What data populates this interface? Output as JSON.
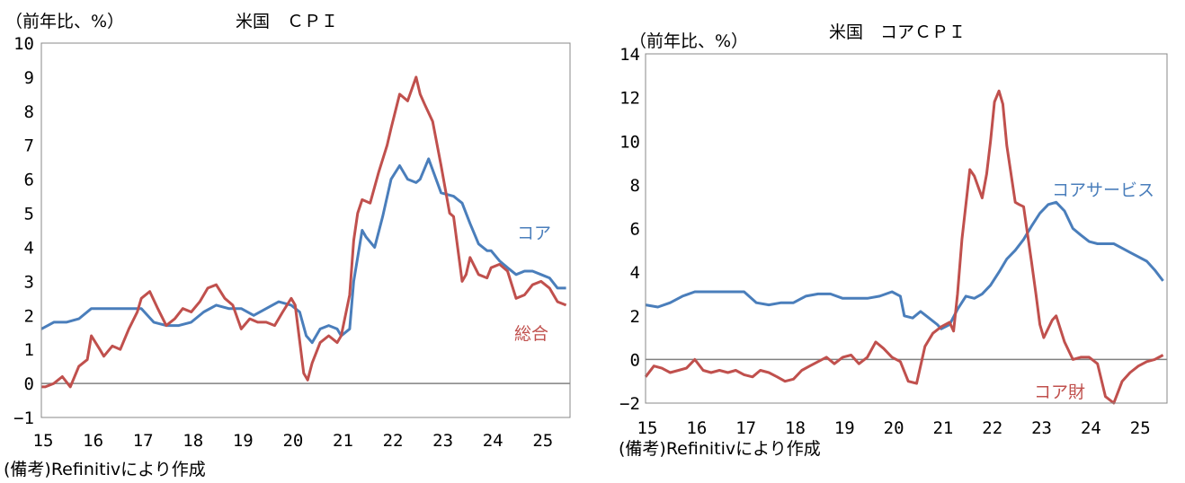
{
  "colors": {
    "blue": "#4a7ebb",
    "red": "#c0504d",
    "frame": "#888888",
    "zero": "#808080"
  },
  "charts": [
    {
      "title": "米国　ＣＰＩ",
      "unit": "（前年比、%）",
      "note": "(備考)Refinitivにより作成",
      "label_blue": "コア",
      "label_red": "総合"
    },
    {
      "title": "米国　コアＣＰＩ",
      "unit": "（前年比、%）",
      "note": "(備考)Refinitivにより作成",
      "label_blue": "コアサービス",
      "label_red": "コア財"
    }
  ],
  "chart_data": [
    {
      "type": "line",
      "title": "米国　ＣＰＩ",
      "ylabel": "（前年比、%）",
      "ylim": [
        -1,
        10
      ],
      "yticks": [
        -1,
        0,
        1,
        2,
        3,
        4,
        5,
        6,
        7,
        8,
        9,
        10
      ],
      "xlim": [
        2015.0,
        2025.58
      ],
      "xticks": [
        "15",
        "16",
        "17",
        "18",
        "19",
        "20",
        "21",
        "22",
        "23",
        "24",
        "25"
      ],
      "series": [
        {
          "name": "コア",
          "color": "#4a7ebb",
          "x": [
            2015.0,
            2015.25,
            2015.5,
            2015.75,
            2016.0,
            2016.25,
            2016.4,
            2016.6,
            2016.75,
            2017.0,
            2017.25,
            2017.5,
            2017.75,
            2018.0,
            2018.25,
            2018.5,
            2018.75,
            2019.0,
            2019.25,
            2019.5,
            2019.75,
            2020.0,
            2020.17,
            2020.3,
            2020.42,
            2020.58,
            2020.75,
            2020.92,
            2021.0,
            2021.17,
            2021.25,
            2021.42,
            2021.5,
            2021.67,
            2021.83,
            2022.0,
            2022.17,
            2022.33,
            2022.5,
            2022.58,
            2022.75,
            2023.0,
            2023.25,
            2023.42,
            2023.58,
            2023.75,
            2023.92,
            2024.0,
            2024.17,
            2024.33,
            2024.5,
            2024.67,
            2024.83,
            2025.0,
            2025.17,
            2025.33,
            2025.5
          ],
          "y": [
            1.6,
            1.8,
            1.8,
            1.9,
            2.2,
            2.2,
            2.2,
            2.2,
            2.2,
            2.2,
            1.8,
            1.7,
            1.7,
            1.8,
            2.1,
            2.3,
            2.2,
            2.2,
            2.0,
            2.2,
            2.4,
            2.3,
            2.1,
            1.4,
            1.2,
            1.6,
            1.7,
            1.6,
            1.4,
            1.6,
            3.0,
            4.5,
            4.3,
            4.0,
            4.9,
            6.0,
            6.4,
            6.0,
            5.9,
            6.0,
            6.6,
            5.6,
            5.5,
            5.3,
            4.7,
            4.1,
            3.9,
            3.9,
            3.6,
            3.4,
            3.2,
            3.3,
            3.3,
            3.2,
            3.1,
            2.8,
            2.8
          ]
        },
        {
          "name": "総合",
          "color": "#c0504d",
          "x": [
            2015.0,
            2015.08,
            2015.25,
            2015.42,
            2015.58,
            2015.75,
            2015.92,
            2016.0,
            2016.17,
            2016.25,
            2016.42,
            2016.58,
            2016.75,
            2016.92,
            2017.0,
            2017.17,
            2017.33,
            2017.5,
            2017.67,
            2017.83,
            2018.0,
            2018.17,
            2018.33,
            2018.5,
            2018.67,
            2018.83,
            2019.0,
            2019.17,
            2019.33,
            2019.5,
            2019.67,
            2019.83,
            2020.0,
            2020.08,
            2020.25,
            2020.33,
            2020.42,
            2020.58,
            2020.75,
            2020.92,
            2021.0,
            2021.17,
            2021.25,
            2021.33,
            2021.42,
            2021.58,
            2021.75,
            2021.92,
            2022.0,
            2022.17,
            2022.33,
            2022.5,
            2022.58,
            2022.67,
            2022.83,
            2023.0,
            2023.17,
            2023.25,
            2023.33,
            2023.42,
            2023.5,
            2023.58,
            2023.75,
            2023.92,
            2024.0,
            2024.17,
            2024.33,
            2024.5,
            2024.67,
            2024.83,
            2025.0,
            2025.17,
            2025.33,
            2025.5
          ],
          "y": [
            -0.1,
            -0.1,
            0.0,
            0.2,
            -0.1,
            0.5,
            0.7,
            1.4,
            1.0,
            0.8,
            1.1,
            1.0,
            1.6,
            2.1,
            2.5,
            2.7,
            2.2,
            1.7,
            1.9,
            2.2,
            2.1,
            2.4,
            2.8,
            2.9,
            2.5,
            2.3,
            1.6,
            1.9,
            1.8,
            1.8,
            1.7,
            2.1,
            2.5,
            2.3,
            0.3,
            0.1,
            0.6,
            1.2,
            1.4,
            1.2,
            1.4,
            2.6,
            4.2,
            5.0,
            5.4,
            5.3,
            6.2,
            7.0,
            7.5,
            8.5,
            8.3,
            9.0,
            8.5,
            8.2,
            7.7,
            6.4,
            5.0,
            4.9,
            4.0,
            3.0,
            3.2,
            3.7,
            3.2,
            3.1,
            3.4,
            3.5,
            3.3,
            2.5,
            2.6,
            2.9,
            3.0,
            2.8,
            2.4,
            2.3
          ]
        }
      ]
    },
    {
      "type": "line",
      "title": "米国　コアＣＰＩ",
      "ylabel": "（前年比、%）",
      "ylim": [
        -2,
        14
      ],
      "yticks": [
        -2,
        0,
        2,
        4,
        6,
        8,
        10,
        12,
        14
      ],
      "xlim": [
        2015.0,
        2025.58
      ],
      "xticks": [
        "15",
        "16",
        "17",
        "18",
        "19",
        "20",
        "21",
        "22",
        "23",
        "24",
        "25"
      ],
      "series": [
        {
          "name": "コアサービス",
          "color": "#4a7ebb",
          "x": [
            2015.0,
            2015.25,
            2015.5,
            2015.75,
            2016.0,
            2016.25,
            2016.5,
            2016.75,
            2017.0,
            2017.25,
            2017.5,
            2017.75,
            2018.0,
            2018.25,
            2018.5,
            2018.75,
            2019.0,
            2019.25,
            2019.5,
            2019.75,
            2020.0,
            2020.17,
            2020.25,
            2020.42,
            2020.58,
            2020.75,
            2020.92,
            2021.0,
            2021.17,
            2021.33,
            2021.5,
            2021.67,
            2021.83,
            2022.0,
            2022.17,
            2022.33,
            2022.5,
            2022.67,
            2022.83,
            2023.0,
            2023.17,
            2023.33,
            2023.5,
            2023.67,
            2023.83,
            2024.0,
            2024.17,
            2024.33,
            2024.5,
            2024.67,
            2024.83,
            2025.0,
            2025.17,
            2025.33,
            2025.5
          ],
          "y": [
            2.5,
            2.4,
            2.6,
            2.9,
            3.1,
            3.1,
            3.1,
            3.1,
            3.1,
            2.6,
            2.5,
            2.6,
            2.6,
            2.9,
            3.0,
            3.0,
            2.8,
            2.8,
            2.8,
            2.9,
            3.1,
            2.9,
            2.0,
            1.9,
            2.2,
            1.9,
            1.6,
            1.4,
            1.6,
            2.3,
            2.9,
            2.8,
            3.0,
            3.4,
            4.0,
            4.6,
            5.0,
            5.5,
            6.1,
            6.7,
            7.1,
            7.2,
            6.8,
            6.0,
            5.7,
            5.4,
            5.3,
            5.3,
            5.3,
            5.1,
            4.9,
            4.7,
            4.5,
            4.1,
            3.6
          ]
        },
        {
          "name": "コア財",
          "color": "#c0504d",
          "x": [
            2015.0,
            2015.17,
            2015.33,
            2015.5,
            2015.67,
            2015.83,
            2016.0,
            2016.17,
            2016.33,
            2016.5,
            2016.67,
            2016.83,
            2017.0,
            2017.17,
            2017.33,
            2017.5,
            2017.67,
            2017.83,
            2018.0,
            2018.17,
            2018.33,
            2018.5,
            2018.67,
            2018.83,
            2019.0,
            2019.17,
            2019.33,
            2019.5,
            2019.67,
            2019.83,
            2020.0,
            2020.17,
            2020.33,
            2020.5,
            2020.67,
            2020.83,
            2021.0,
            2021.17,
            2021.25,
            2021.33,
            2021.42,
            2021.58,
            2021.67,
            2021.83,
            2021.92,
            2022.0,
            2022.08,
            2022.17,
            2022.25,
            2022.33,
            2022.5,
            2022.58,
            2022.67,
            2022.83,
            2022.92,
            2023.0,
            2023.08,
            2023.25,
            2023.33,
            2023.5,
            2023.67,
            2023.83,
            2024.0,
            2024.17,
            2024.33,
            2024.5,
            2024.67,
            2024.83,
            2025.0,
            2025.17,
            2025.33,
            2025.5
          ],
          "y": [
            -0.8,
            -0.3,
            -0.4,
            -0.6,
            -0.5,
            -0.4,
            0.0,
            -0.5,
            -0.6,
            -0.5,
            -0.6,
            -0.5,
            -0.7,
            -0.8,
            -0.5,
            -0.6,
            -0.8,
            -1.0,
            -0.9,
            -0.5,
            -0.3,
            -0.1,
            0.1,
            -0.2,
            0.1,
            0.2,
            -0.2,
            0.1,
            0.8,
            0.5,
            0.1,
            -0.1,
            -1.0,
            -1.1,
            0.6,
            1.2,
            1.5,
            1.7,
            1.3,
            3.0,
            5.5,
            8.7,
            8.4,
            7.4,
            8.5,
            10.0,
            11.8,
            12.3,
            11.7,
            9.8,
            7.2,
            7.1,
            7.0,
            4.5,
            3.0,
            1.6,
            1.0,
            1.8,
            2.0,
            0.8,
            0.0,
            0.1,
            0.1,
            -0.2,
            -1.7,
            -2.0,
            -1.0,
            -0.6,
            -0.3,
            -0.1,
            0.0,
            0.2
          ]
        }
      ]
    }
  ]
}
